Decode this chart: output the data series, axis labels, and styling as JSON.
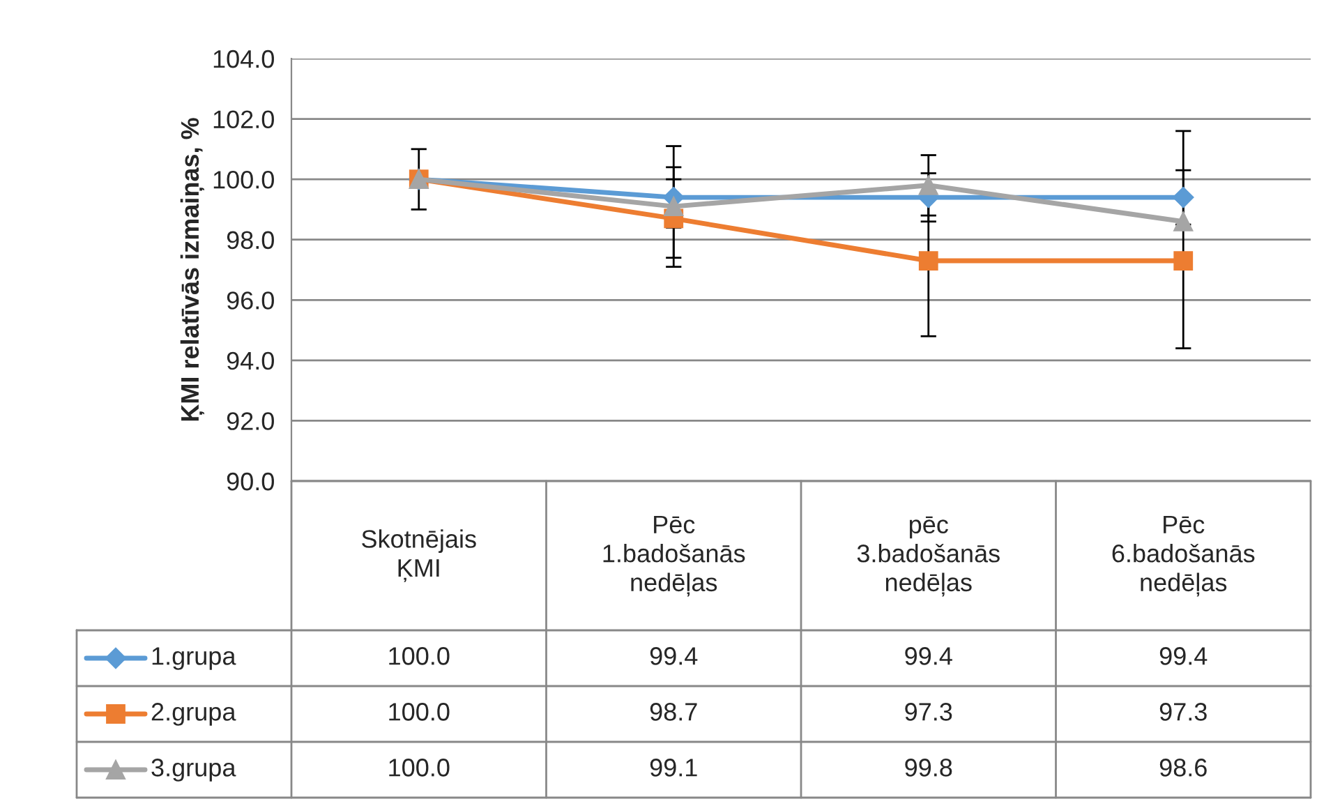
{
  "chart_data": {
    "type": "line",
    "ylabel": "ĶMI relatīvās izmaiņas, %",
    "categories": [
      "Skotnējais\nĶMI",
      "Pēc\n1.badošanās\nnedēļas",
      "pēc\n3.badošanās\nnedēļas",
      "Pēc\n6.badošanās\nnedēļas"
    ],
    "series": [
      {
        "name": "1.grupa",
        "color": "#5b9bd5",
        "marker": "diamond",
        "values": [
          100.0,
          99.4,
          99.4,
          99.4
        ],
        "errors": [
          1.0,
          1.0,
          0.8,
          0.9
        ],
        "value_labels": [
          "100.0",
          "99.4",
          "99.4",
          "99.4"
        ]
      },
      {
        "name": "2.grupa",
        "color": "#ed7d31",
        "marker": "square",
        "values": [
          100.0,
          98.7,
          97.3,
          97.3
        ],
        "errors": [
          null,
          1.3,
          2.5,
          null
        ],
        "value_labels": [
          "100.0",
          "98.7",
          "97.3",
          "97.3"
        ]
      },
      {
        "name": "3.grupa",
        "color": "#a5a5a5",
        "marker": "triangle",
        "values": [
          100.0,
          99.1,
          99.8,
          98.6
        ],
        "errors": [
          null,
          2.0,
          1.0,
          [
            94.4,
            101.6
          ]
        ],
        "value_labels": [
          "100.0",
          "99.1",
          "99.8",
          "98.6"
        ]
      }
    ],
    "ylim": [
      90,
      104
    ],
    "yticks": [
      {
        "value": 90,
        "label": "90.0"
      },
      {
        "value": 92,
        "label": "92.0"
      },
      {
        "value": 94,
        "label": "94.0"
      },
      {
        "value": 96,
        "label": "96.0"
      },
      {
        "value": 98,
        "label": "98.0"
      },
      {
        "value": 100,
        "label": "100.0"
      },
      {
        "value": 102,
        "label": "102.0"
      },
      {
        "value": 104,
        "label": "104.0"
      }
    ],
    "grid": "y",
    "legend": "bottom left"
  }
}
